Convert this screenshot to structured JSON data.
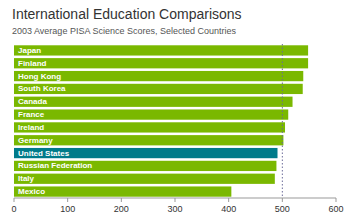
{
  "chart_data": {
    "type": "bar",
    "orientation": "horizontal",
    "title": "International Education Comparisons",
    "subtitle": "2003 Average PISA Science Scores, Selected Countries",
    "categories": [
      "Japan",
      "Finland",
      "Hong Kong",
      "South Korea",
      "Canada",
      "France",
      "Ireland",
      "Germany",
      "United States",
      "Russian Federation",
      "Italy",
      "Mexico"
    ],
    "values": [
      548,
      548,
      539,
      538,
      519,
      511,
      505,
      502,
      491,
      489,
      486,
      405
    ],
    "colors": [
      "#7ab800",
      "#7ab800",
      "#7ab800",
      "#7ab800",
      "#7ab800",
      "#7ab800",
      "#7ab800",
      "#7ab800",
      "#007b8a",
      "#7ab800",
      "#7ab800",
      "#7ab800"
    ],
    "xlim": [
      0,
      600
    ],
    "xticks": [
      0,
      100,
      200,
      300,
      400,
      500,
      600
    ],
    "reference_x": 500,
    "grid": false
  }
}
